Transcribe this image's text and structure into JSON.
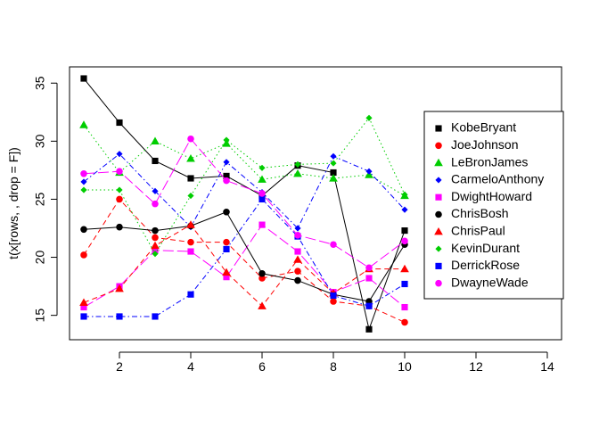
{
  "chart_data": {
    "type": "line",
    "title": "",
    "xlabel": "",
    "ylabel": "t(x[rows, , drop = F])",
    "xlim": [
      0.6,
      14.4
    ],
    "ylim": [
      12.9,
      36.4
    ],
    "xticks": [
      2,
      4,
      6,
      8,
      10,
      12,
      14
    ],
    "yticks": [
      15,
      20,
      25,
      30,
      35
    ],
    "grid": false,
    "legend_position": "right",
    "x": [
      1,
      2,
      3,
      4,
      5,
      6,
      7,
      8,
      9,
      10
    ],
    "series": [
      {
        "name": "KobeBryant",
        "color": "#000000",
        "marker": "square",
        "dash": "",
        "values": [
          35.4,
          31.6,
          28.3,
          26.8,
          27.0,
          25.3,
          27.9,
          27.3,
          13.8,
          22.3
        ]
      },
      {
        "name": "JoeJohnson",
        "color": "#ff0000",
        "marker": "circle",
        "dash": "6,4",
        "values": [
          20.2,
          25.0,
          21.7,
          21.3,
          21.3,
          18.2,
          18.8,
          16.2,
          15.8,
          14.4
        ]
      },
      {
        "name": "LeBronJames",
        "color": "#00cd00",
        "marker": "triangle",
        "dash": "1.5,3",
        "values": [
          31.4,
          27.3,
          30.0,
          28.5,
          29.8,
          26.7,
          27.2,
          26.8,
          27.1,
          25.3
        ]
      },
      {
        "name": "CarmeloAnthony",
        "color": "#0000ff",
        "marker": "diamond",
        "dash": "6,3,1.5,3",
        "values": [
          26.5,
          28.9,
          25.7,
          22.6,
          28.2,
          25.6,
          22.5,
          28.7,
          27.4,
          24.1
        ]
      },
      {
        "name": "DwightHoward",
        "color": "#ff00ff",
        "marker": "square",
        "dash": "12,4",
        "values": [
          15.7,
          17.5,
          20.6,
          20.5,
          18.3,
          22.8,
          20.5,
          17.0,
          18.2,
          15.7
        ]
      },
      {
        "name": "ChrisBosh",
        "color": "#000000",
        "marker": "circle",
        "dash": "",
        "values": [
          22.4,
          22.6,
          22.3,
          22.7,
          23.9,
          18.6,
          18.0,
          16.8,
          16.2,
          21.1
        ]
      },
      {
        "name": "ChrisPaul",
        "color": "#ff0000",
        "marker": "triangle",
        "dash": "6,4",
        "values": [
          16.1,
          17.3,
          21.0,
          22.8,
          18.7,
          15.8,
          19.8,
          16.9,
          19.0,
          19.0
        ]
      },
      {
        "name": "KevinDurant",
        "color": "#00cd00",
        "marker": "diamond",
        "dash": "1.5,3",
        "values": [
          25.8,
          25.8,
          20.3,
          25.3,
          30.1,
          27.7,
          28.0,
          28.1,
          32.0,
          25.4
        ]
      },
      {
        "name": "DerrickRose",
        "color": "#0000ff",
        "marker": "square",
        "dash": "6,3,1.5,3",
        "values": [
          14.9,
          14.9,
          14.9,
          16.8,
          20.7,
          25.0,
          21.8,
          16.7,
          15.8,
          17.7
        ]
      },
      {
        "name": "DwayneWade",
        "color": "#ff00ff",
        "marker": "circle",
        "dash": "12,4",
        "values": [
          27.2,
          27.4,
          24.6,
          30.2,
          26.6,
          25.5,
          21.9,
          21.1,
          19.1,
          21.4
        ]
      }
    ]
  }
}
